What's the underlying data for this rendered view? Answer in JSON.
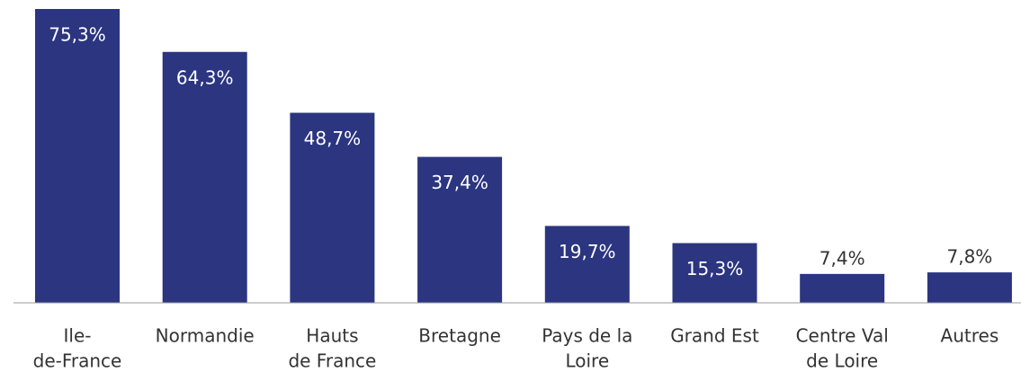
{
  "chart_data": {
    "type": "bar",
    "categories": [
      [
        "Ile-",
        "de-France"
      ],
      [
        "Normandie"
      ],
      [
        "Hauts",
        "de France"
      ],
      [
        "Bretagne"
      ],
      [
        "Pays de la",
        "Loire"
      ],
      [
        "Grand Est"
      ],
      [
        "Centre Val",
        "de Loire"
      ],
      [
        "Autres"
      ]
    ],
    "values": [
      75.3,
      64.3,
      48.7,
      37.4,
      19.7,
      15.3,
      7.4,
      7.8
    ],
    "value_labels": [
      "75,3%",
      "64,3%",
      "48,7%",
      "37,4%",
      "19,7%",
      "15,3%",
      "7,4%",
      "7,8%"
    ],
    "color": "#2b3580"
  }
}
